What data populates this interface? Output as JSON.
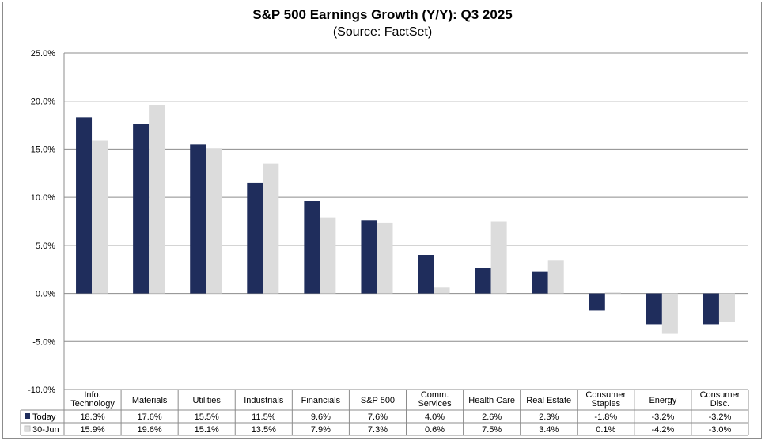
{
  "chart_data": {
    "type": "bar",
    "title": "S&P 500 Earnings Growth (Y/Y): Q3 2025",
    "subtitle": "(Source: FactSet)",
    "categories": [
      [
        "Info.",
        "Technology"
      ],
      [
        "Materials"
      ],
      [
        "Utilities"
      ],
      [
        "Industrials"
      ],
      [
        "Financials"
      ],
      [
        "S&P 500"
      ],
      [
        "Comm.",
        "Services"
      ],
      [
        "Health Care"
      ],
      [
        "Real Estate"
      ],
      [
        "Consumer",
        "Staples"
      ],
      [
        "Energy"
      ],
      [
        "Consumer",
        "Disc."
      ]
    ],
    "series": [
      {
        "name": "Today",
        "color": "#1f2d5c",
        "values": [
          18.3,
          17.6,
          15.5,
          11.5,
          9.6,
          7.6,
          4.0,
          2.6,
          2.3,
          -1.8,
          -3.2,
          -3.2
        ],
        "labels": [
          "18.3%",
          "17.6%",
          "15.5%",
          "11.5%",
          "9.6%",
          "7.6%",
          "4.0%",
          "2.6%",
          "2.3%",
          "-1.8%",
          "-3.2%",
          "-3.2%"
        ]
      },
      {
        "name": "30-Jun",
        "color": "#dcdcdc",
        "values": [
          15.9,
          19.6,
          15.1,
          13.5,
          7.9,
          7.3,
          0.6,
          7.5,
          3.4,
          0.1,
          -4.2,
          -3.0
        ],
        "labels": [
          "15.9%",
          "19.6%",
          "15.1%",
          "13.5%",
          "7.9%",
          "7.3%",
          "0.6%",
          "7.5%",
          "3.4%",
          "0.1%",
          "-4.2%",
          "-3.0%"
        ]
      }
    ],
    "ylim": [
      -10,
      25
    ],
    "yticks": [
      25,
      20,
      15,
      10,
      5,
      0,
      -5,
      -10
    ],
    "ytick_labels": [
      "25.0%",
      "20.0%",
      "15.0%",
      "10.0%",
      "5.0%",
      "0.0%",
      "-5.0%",
      "-10.0%"
    ],
    "grid": true,
    "legend": "data-table"
  }
}
